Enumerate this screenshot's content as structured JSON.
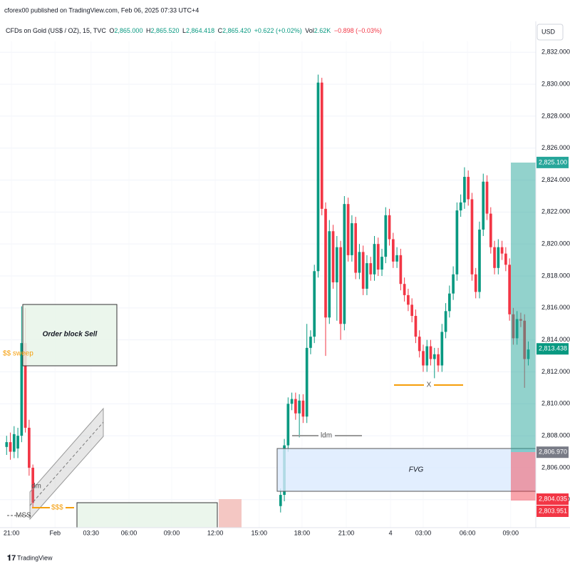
{
  "header": {
    "published_by": "cforex00 published on TradingView.com, Feb 06, 2025 07:33 UTC+4",
    "symbol": "CFDs on Gold (US$ / OZ), 15, TVC",
    "o_label": "O",
    "o_value": "2,865.000",
    "h_label": "H",
    "h_value": "2,865.520",
    "l_label": "L",
    "l_value": "2,864.418",
    "c_label": "C",
    "c_value": "2,865.420",
    "change": "+0.622 (+0.02%)",
    "vol_label": "Vol",
    "vol_value": "2.62K",
    "vol_change": "−0.898 (−0.03%)",
    "currency": "USD"
  },
  "footer": {
    "brand": "TradingView"
  },
  "annotations": {
    "order_block": "Order block Sell",
    "sweep": "$$ sweep",
    "mss": "MSS",
    "dm": "dm",
    "liquidity": "$$$",
    "ldm": "ldm",
    "x_mark": "X",
    "fvg": "FVG"
  },
  "chart_data": {
    "type": "candlestick",
    "up_color": "#089981",
    "down_color": "#f23645",
    "grid": true,
    "xlim": [
      0,
      142
    ],
    "ylim": [
      2802.25,
      2832.68
    ],
    "xticks": [
      {
        "value": 2.3,
        "label": "21:00"
      },
      {
        "value": 13.9,
        "label": "Feb"
      },
      {
        "value": 23.5,
        "label": "03:30"
      },
      {
        "value": 33.6,
        "label": "06:00"
      },
      {
        "value": 45,
        "label": "09:00"
      },
      {
        "value": 56.6,
        "label": "12:00"
      },
      {
        "value": 68.3,
        "label": "15:00"
      },
      {
        "value": 79.7,
        "label": "18:00"
      },
      {
        "value": 91.5,
        "label": "21:00"
      },
      {
        "value": 103.3,
        "label": "4"
      },
      {
        "value": 112,
        "label": "03:00"
      },
      {
        "value": 123.8,
        "label": "06:00"
      },
      {
        "value": 135.3,
        "label": "09:00"
      }
    ],
    "yticks": [
      {
        "value": 2804,
        "label": "2,804.000"
      },
      {
        "value": 2806,
        "label": "2,806.000"
      },
      {
        "value": 2808,
        "label": "2,808.000"
      },
      {
        "value": 2810,
        "label": "2,810.000"
      },
      {
        "value": 2812,
        "label": "2,812.000"
      },
      {
        "value": 2814,
        "label": "2,814.000"
      },
      {
        "value": 2816,
        "label": "2,816.000"
      },
      {
        "value": 2818,
        "label": "2,818.000"
      },
      {
        "value": 2820,
        "label": "2,820.000"
      },
      {
        "value": 2822,
        "label": "2,822.000"
      },
      {
        "value": 2824,
        "label": "2,824.000"
      },
      {
        "value": 2826,
        "label": "2,826.000"
      },
      {
        "value": 2828,
        "label": "2,828.000"
      },
      {
        "value": 2830,
        "label": "2,830.000"
      },
      {
        "value": 2832,
        "label": "2,832.000"
      }
    ],
    "price_labels": [
      {
        "value": 2825.1,
        "label": "2,825.100",
        "color": "#26a69a"
      },
      {
        "value": 2813.438,
        "label": "2,813.438",
        "color": "#089981"
      },
      {
        "value": 2806.97,
        "label": "2,806.970",
        "color": "#787b86"
      },
      {
        "value": 2804.035,
        "label": "2,804.035",
        "color": "#f23645"
      },
      {
        "value": 2803.951,
        "label": "2,803.951",
        "color": "#f23645"
      }
    ],
    "x": [
      1,
      2,
      3,
      4,
      5,
      6,
      7,
      8,
      74,
      75,
      76,
      77,
      78,
      79,
      80,
      81,
      82,
      83,
      84,
      85,
      86,
      87,
      88,
      89,
      90,
      91,
      92,
      93,
      94,
      95,
      96,
      97,
      98,
      99,
      100,
      101,
      102,
      103,
      104,
      105,
      106,
      107,
      108,
      109,
      110,
      111,
      112,
      113,
      114,
      115,
      116,
      117,
      118,
      119,
      120,
      121,
      122,
      123,
      124,
      125,
      126,
      127,
      128,
      129,
      130,
      131,
      132,
      133,
      134,
      135,
      136,
      137,
      138,
      139,
      140
    ],
    "open": [
      2807.3,
      2807.6,
      2807.0,
      2807.2,
      2808.0,
      2813.8,
      2808.5,
      2806.0,
      2803.6,
      2804.3,
      2807.4,
      2810.0,
      2810.3,
      2809.4,
      2810.2,
      2809.2,
      2813.5,
      2814.2,
      2818.3,
      2830.1,
      2822.2,
      2815.4,
      2820.8,
      2817.6,
      2819.8,
      2815.0,
      2822.5,
      2819.3,
      2821.3,
      2818.2,
      2819.5,
      2817.2,
      2818.8,
      2818.1,
      2820.0,
      2818.4,
      2819.2,
      2821.8,
      2820.3,
      2818.9,
      2819.3,
      2817.5,
      2816.8,
      2816.2,
      2815.5,
      2814.2,
      2813.3,
      2812.4,
      2813.6,
      2812.8,
      2813.1,
      2812.4,
      2814.5,
      2815.8,
      2816.9,
      2818.1,
      2822.1,
      2822.6,
      2824.2,
      2822.8,
      2818.1,
      2817.0,
      2820.9,
      2823.9,
      2821.9,
      2819.8,
      2818.5,
      2819.8,
      2819.4,
      2818.7,
      2815.6,
      2814.1,
      2815.3,
      2815.2,
      2812.8
    ],
    "high": [
      2808.0,
      2808.2,
      2808.6,
      2808.5,
      2816.1,
      2816.0,
      2809.0,
      2806.2,
      2804.7,
      2807.8,
      2810.4,
      2810.7,
      2810.7,
      2810.6,
      2810.6,
      2815.0,
      2814.6,
      2818.7,
      2830.6,
      2830.4,
      2822.6,
      2821.5,
      2821.2,
      2820.5,
      2820.2,
      2823.0,
      2822.9,
      2821.8,
      2821.7,
      2820.0,
      2819.9,
      2819.3,
      2819.2,
      2820.5,
      2820.4,
      2819.7,
      2822.3,
      2822.2,
      2820.7,
      2819.8,
      2819.7,
      2817.9,
      2817.2,
      2816.6,
      2815.9,
      2814.6,
      2813.7,
      2814.0,
      2814.0,
      2813.5,
      2813.5,
      2815.0,
      2816.3,
      2817.4,
      2818.6,
      2822.6,
      2823.1,
      2824.8,
      2824.6,
      2823.2,
      2818.5,
      2821.4,
      2824.4,
      2824.3,
      2822.3,
      2820.2,
      2820.3,
      2820.2,
      2819.8,
      2819.1,
      2816.0,
      2815.8,
      2815.7,
      2815.6,
      2813.9
    ],
    "low": [
      2806.8,
      2806.5,
      2806.6,
      2806.6,
      2807.6,
      2808.2,
      2805.5,
      2803.5,
      2803.2,
      2803.9,
      2807.0,
      2809.6,
      2809.0,
      2807.9,
      2808.8,
      2808.8,
      2813.1,
      2813.8,
      2817.9,
      2821.8,
      2813.0,
      2815.0,
      2817.2,
      2815.2,
      2814.0,
      2814.6,
      2818.9,
      2818.9,
      2817.8,
      2817.8,
      2816.8,
      2816.8,
      2817.7,
      2817.7,
      2818.0,
      2818.0,
      2818.8,
      2819.9,
      2818.5,
      2818.5,
      2817.1,
      2816.4,
      2815.8,
      2815.1,
      2813.8,
      2812.9,
      2812.0,
      2812.0,
      2812.4,
      2811.6,
      2812.0,
      2812.0,
      2814.1,
      2815.4,
      2816.5,
      2817.7,
      2821.7,
      2822.2,
      2822.4,
      2817.7,
      2816.6,
      2816.6,
      2820.5,
      2821.5,
      2819.4,
      2818.1,
      2818.1,
      2819.0,
      2818.3,
      2815.2,
      2813.7,
      2813.7,
      2814.8,
      2811.0,
      2812.4
    ],
    "close": [
      2807.6,
      2807.0,
      2808.1,
      2808.0,
      2813.8,
      2808.5,
      2806.0,
      2803.8,
      2804.3,
      2807.4,
      2810.0,
      2810.3,
      2809.4,
      2810.2,
      2809.2,
      2813.5,
      2814.2,
      2818.3,
      2830.1,
      2822.2,
      2815.4,
      2820.8,
      2817.6,
      2819.8,
      2815.0,
      2822.5,
      2819.3,
      2821.3,
      2818.2,
      2819.5,
      2817.2,
      2818.8,
      2818.1,
      2820.0,
      2818.4,
      2819.2,
      2821.8,
      2820.3,
      2818.9,
      2819.3,
      2817.5,
      2816.8,
      2816.2,
      2815.5,
      2814.2,
      2813.3,
      2812.4,
      2813.6,
      2812.8,
      2813.1,
      2812.4,
      2814.5,
      2815.8,
      2816.9,
      2818.1,
      2822.1,
      2822.6,
      2824.2,
      2822.8,
      2818.1,
      2817.0,
      2820.9,
      2823.9,
      2821.9,
      2819.8,
      2818.5,
      2819.8,
      2819.4,
      2818.7,
      2815.6,
      2814.1,
      2815.3,
      2815.2,
      2812.8,
      2813.4
    ]
  }
}
